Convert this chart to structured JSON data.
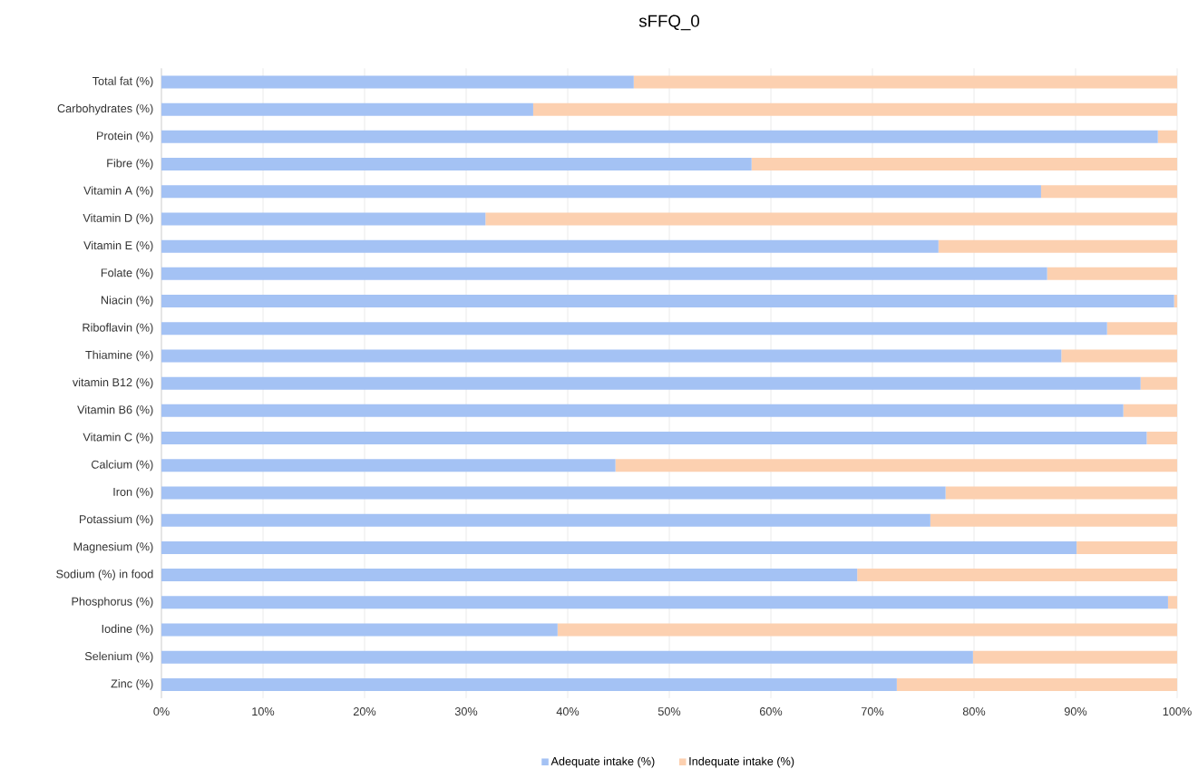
{
  "chart_data": {
    "type": "bar",
    "orientation": "horizontal",
    "stacked": true,
    "title": "sFFQ_0",
    "categories": [
      "Total fat (%)",
      "Carbohydrates (%)",
      "Protein (%)",
      "Fibre (%)",
      "Vitamin A (%)",
      "Vitamin D (%)",
      "Vitamin E (%)",
      "Folate (%)",
      "Niacin (%)",
      "Riboflavin (%)",
      "Thiamine (%)",
      "vitamin B12 (%)",
      "Vitamin B6 (%)",
      "Vitamin C (%)",
      "Calcium (%)",
      "Iron (%)",
      "Potassium (%)",
      "Magnesium (%)",
      "Sodium (%) in food",
      "Phosphorus (%)",
      "Iodine (%)",
      "Selenium (%)",
      "Zinc (%)"
    ],
    "series": [
      {
        "name": "Adequate intake (%)",
        "color": "#a4c2f4",
        "values": [
          46.5,
          36.6,
          98.1,
          58.1,
          86.6,
          31.9,
          76.5,
          87.2,
          99.7,
          93.1,
          88.6,
          96.4,
          94.7,
          97.0,
          44.7,
          77.2,
          75.7,
          90.1,
          68.5,
          99.1,
          39.0,
          79.9,
          72.4
        ]
      },
      {
        "name": "Indequate intake (%)",
        "color": "#fcd0b0",
        "values": [
          53.5,
          63.4,
          1.9,
          41.9,
          13.4,
          68.1,
          23.5,
          12.8,
          0.3,
          6.9,
          11.4,
          3.6,
          5.3,
          3.0,
          55.3,
          22.8,
          24.3,
          9.9,
          31.5,
          0.9,
          61.0,
          20.1,
          27.6
        ]
      }
    ],
    "xlim": [
      0,
      100
    ],
    "xticks": [
      {
        "value": 0,
        "label": "0%"
      },
      {
        "value": 10,
        "label": "10%"
      },
      {
        "value": 20,
        "label": "20%"
      },
      {
        "value": 30,
        "label": "30%"
      },
      {
        "value": 40,
        "label": "40%"
      },
      {
        "value": 50,
        "label": "50%"
      },
      {
        "value": 60,
        "label": "60%"
      },
      {
        "value": 70,
        "label": "70%"
      },
      {
        "value": 80,
        "label": "80%"
      },
      {
        "value": 90,
        "label": "90%"
      },
      {
        "value": 100,
        "label": "100%"
      }
    ],
    "grid": "x",
    "legend": "bottom"
  }
}
